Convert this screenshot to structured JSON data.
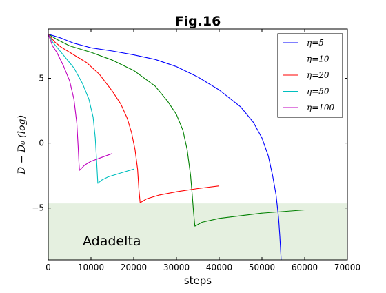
{
  "chart_data": {
    "type": "line",
    "title": "Fig.16",
    "xlabel": "steps",
    "ylabel": "D − D₀  (log)",
    "xlim": [
      0,
      70000
    ],
    "ylim": [
      -9,
      8.8
    ],
    "x_ticks": [
      0,
      10000,
      20000,
      30000,
      40000,
      50000,
      60000,
      70000
    ],
    "x_tick_labels": [
      "0",
      "10000",
      "20000",
      "30000",
      "40000",
      "50000",
      "60000",
      "70000"
    ],
    "y_ticks": [
      5,
      0,
      -5
    ],
    "y_tick_labels": [
      "5",
      "0",
      "−5"
    ],
    "grid": false,
    "legend_position": "top-right",
    "shaded_region": {
      "y_from": -9,
      "y_to": -4.65,
      "color": "#e5f0e0",
      "label": "Adadelta"
    },
    "series": [
      {
        "name": "η=5",
        "color": "#0000ff",
        "points": [
          [
            0,
            8.4
          ],
          [
            3000,
            8.1
          ],
          [
            6000,
            7.7
          ],
          [
            10000,
            7.35
          ],
          [
            15000,
            7.1
          ],
          [
            20000,
            6.8
          ],
          [
            25000,
            6.45
          ],
          [
            30000,
            5.9
          ],
          [
            35000,
            5.1
          ],
          [
            40000,
            4.1
          ],
          [
            45000,
            2.8
          ],
          [
            48000,
            1.6
          ],
          [
            50000,
            0.4
          ],
          [
            51500,
            -1.0
          ],
          [
            52500,
            -2.5
          ],
          [
            53300,
            -4.0
          ],
          [
            53900,
            -5.8
          ],
          [
            54200,
            -7.2
          ],
          [
            54500,
            -9.0
          ]
        ]
      },
      {
        "name": "η=10",
        "color": "#008000",
        "points": [
          [
            0,
            8.4
          ],
          [
            2000,
            8.0
          ],
          [
            5000,
            7.5
          ],
          [
            10000,
            7.0
          ],
          [
            15000,
            6.4
          ],
          [
            20000,
            5.6
          ],
          [
            25000,
            4.4
          ],
          [
            28000,
            3.2
          ],
          [
            30000,
            2.2
          ],
          [
            31500,
            1.0
          ],
          [
            32500,
            -0.5
          ],
          [
            33300,
            -2.5
          ],
          [
            33700,
            -4.0
          ],
          [
            34000,
            -5.3
          ],
          [
            34300,
            -6.4
          ],
          [
            36000,
            -6.1
          ],
          [
            40000,
            -5.8
          ],
          [
            50000,
            -5.4
          ],
          [
            60000,
            -5.15
          ]
        ]
      },
      {
        "name": "η=20",
        "color": "#ff0000",
        "points": [
          [
            0,
            8.4
          ],
          [
            1500,
            7.8
          ],
          [
            3000,
            7.4
          ],
          [
            6000,
            6.8
          ],
          [
            9000,
            6.2
          ],
          [
            12000,
            5.3
          ],
          [
            15000,
            4.0
          ],
          [
            17000,
            3.0
          ],
          [
            18500,
            1.9
          ],
          [
            19500,
            0.8
          ],
          [
            20300,
            -0.5
          ],
          [
            20900,
            -2.0
          ],
          [
            21200,
            -3.5
          ],
          [
            21500,
            -4.6
          ],
          [
            23000,
            -4.3
          ],
          [
            26000,
            -4.0
          ],
          [
            30000,
            -3.75
          ],
          [
            35000,
            -3.5
          ],
          [
            40000,
            -3.3
          ]
        ]
      },
      {
        "name": "η=50",
        "color": "#00bfbf",
        "points": [
          [
            0,
            8.4
          ],
          [
            1000,
            7.8
          ],
          [
            2000,
            7.4
          ],
          [
            4000,
            6.6
          ],
          [
            6000,
            5.8
          ],
          [
            8000,
            4.6
          ],
          [
            9500,
            3.4
          ],
          [
            10500,
            2.0
          ],
          [
            11000,
            0.4
          ],
          [
            11300,
            -1.3
          ],
          [
            11500,
            -2.5
          ],
          [
            11600,
            -3.1
          ],
          [
            12500,
            -2.85
          ],
          [
            14000,
            -2.6
          ],
          [
            17000,
            -2.3
          ],
          [
            20000,
            -2.0
          ]
        ]
      },
      {
        "name": "η=100",
        "color": "#bf00bf",
        "points": [
          [
            0,
            8.4
          ],
          [
            1000,
            7.5
          ],
          [
            2000,
            7.0
          ],
          [
            3500,
            6.0
          ],
          [
            5000,
            4.8
          ],
          [
            6000,
            3.4
          ],
          [
            6700,
            1.5
          ],
          [
            7000,
            -0.3
          ],
          [
            7200,
            -1.6
          ],
          [
            7300,
            -2.1
          ],
          [
            8500,
            -1.7
          ],
          [
            10000,
            -1.4
          ],
          [
            12500,
            -1.1
          ],
          [
            15000,
            -0.8
          ]
        ]
      }
    ]
  }
}
